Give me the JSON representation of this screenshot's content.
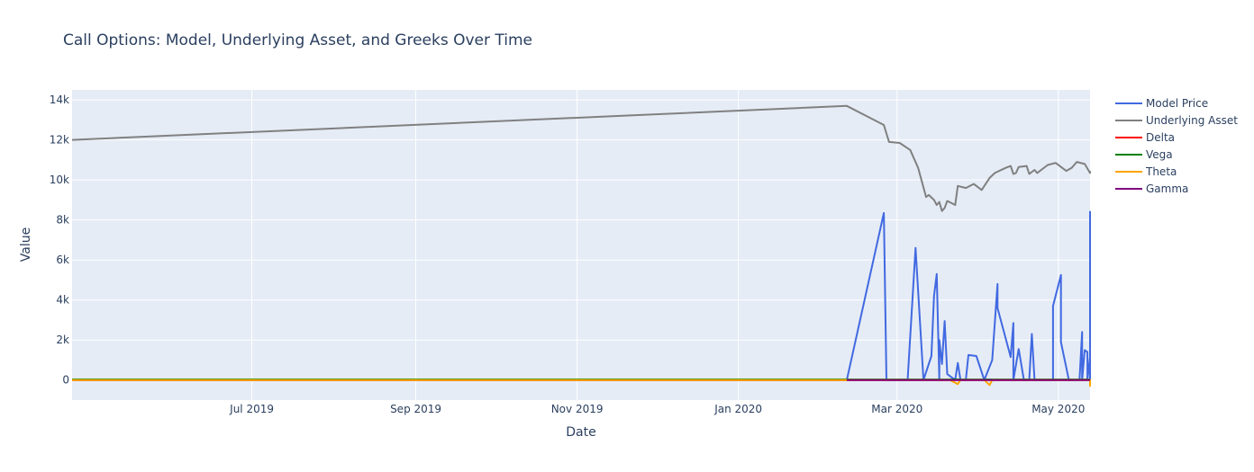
{
  "chart_data": {
    "type": "line",
    "title": "Call Options: Model, Underlying Asset, and Greeks Over Time",
    "xlabel": "Date",
    "ylabel": "Value",
    "x_range": [
      "2019-04-24",
      "2020-05-13"
    ],
    "ylim": [
      -1000,
      14500
    ],
    "grid": true,
    "legend_position": "right",
    "x_ticks": [
      {
        "date": "2019-07-01",
        "label": "Jul 2019"
      },
      {
        "date": "2019-09-01",
        "label": "Sep 2019"
      },
      {
        "date": "2019-11-01",
        "label": "Nov 2019"
      },
      {
        "date": "2020-01-01",
        "label": "Jan 2020"
      },
      {
        "date": "2020-03-01",
        "label": "Mar 2020"
      },
      {
        "date": "2020-05-01",
        "label": "May 2020"
      }
    ],
    "y_ticks": [
      {
        "value": 0,
        "label": "0"
      },
      {
        "value": 2000,
        "label": "2k"
      },
      {
        "value": 4000,
        "label": "4k"
      },
      {
        "value": 6000,
        "label": "6k"
      },
      {
        "value": 8000,
        "label": "8k"
      },
      {
        "value": 10000,
        "label": "10k"
      },
      {
        "value": 12000,
        "label": "12k"
      },
      {
        "value": 14000,
        "label": "14k"
      }
    ],
    "series": [
      {
        "name": "Underlying Asset",
        "color": "#808080",
        "points": [
          [
            "2019-04-24",
            12000
          ],
          [
            "2020-02-11",
            13700
          ],
          [
            "2020-02-25",
            12750
          ],
          [
            "2020-02-27",
            11900
          ],
          [
            "2020-03-02",
            11850
          ],
          [
            "2020-03-06",
            11500
          ],
          [
            "2020-03-09",
            10600
          ],
          [
            "2020-03-12",
            9150
          ],
          [
            "2020-03-13",
            9250
          ],
          [
            "2020-03-15",
            9000
          ],
          [
            "2020-03-16",
            8750
          ],
          [
            "2020-03-17",
            8900
          ],
          [
            "2020-03-18",
            8450
          ],
          [
            "2020-03-19",
            8600
          ],
          [
            "2020-03-20",
            8950
          ],
          [
            "2020-03-23",
            8750
          ],
          [
            "2020-03-24",
            9700
          ],
          [
            "2020-03-27",
            9600
          ],
          [
            "2020-03-30",
            9800
          ],
          [
            "2020-04-02",
            9500
          ],
          [
            "2020-04-05",
            10100
          ],
          [
            "2020-04-07",
            10350
          ],
          [
            "2020-04-11",
            10600
          ],
          [
            "2020-04-13",
            10700
          ],
          [
            "2020-04-14",
            10300
          ],
          [
            "2020-04-15",
            10350
          ],
          [
            "2020-04-16",
            10650
          ],
          [
            "2020-04-19",
            10700
          ],
          [
            "2020-04-20",
            10300
          ],
          [
            "2020-04-22",
            10500
          ],
          [
            "2020-04-23",
            10350
          ],
          [
            "2020-04-27",
            10750
          ],
          [
            "2020-04-30",
            10850
          ],
          [
            "2020-05-04",
            10450
          ],
          [
            "2020-05-06",
            10600
          ],
          [
            "2020-05-08",
            10900
          ],
          [
            "2020-05-11",
            10800
          ],
          [
            "2020-05-13",
            10350
          ],
          [
            "2020-05-14",
            10450
          ]
        ]
      },
      {
        "name": "Model Price",
        "color": "#4169e1",
        "points": [
          [
            "2019-04-24",
            0
          ],
          [
            "2020-02-11",
            0
          ],
          [
            "2020-02-25",
            8350
          ],
          [
            "2020-02-26",
            0
          ],
          [
            "2020-03-05",
            0
          ],
          [
            "2020-03-08",
            6600
          ],
          [
            "2020-03-11",
            0
          ],
          [
            "2020-03-14",
            1200
          ],
          [
            "2020-03-15",
            4200
          ],
          [
            "2020-03-16",
            5300
          ],
          [
            "2020-03-17",
            0
          ],
          [
            "2020-03-17",
            2000
          ],
          [
            "2020-03-18",
            800
          ],
          [
            "2020-03-19",
            2950
          ],
          [
            "2020-03-20",
            300
          ],
          [
            "2020-03-23",
            0
          ],
          [
            "2020-03-24",
            850
          ],
          [
            "2020-03-25",
            0
          ],
          [
            "2020-03-27",
            0
          ],
          [
            "2020-03-28",
            1250
          ],
          [
            "2020-03-31",
            1200
          ],
          [
            "2020-04-03",
            0
          ],
          [
            "2020-04-06",
            1000
          ],
          [
            "2020-04-08",
            4800
          ],
          [
            "2020-04-08",
            3600
          ],
          [
            "2020-04-13",
            1150
          ],
          [
            "2020-04-14",
            2850
          ],
          [
            "2020-04-14",
            0
          ],
          [
            "2020-04-16",
            1550
          ],
          [
            "2020-04-18",
            0
          ],
          [
            "2020-04-20",
            0
          ],
          [
            "2020-04-21",
            2300
          ],
          [
            "2020-04-22",
            0
          ],
          [
            "2020-04-29",
            0
          ],
          [
            "2020-04-29",
            3700
          ],
          [
            "2020-05-02",
            5250
          ],
          [
            "2020-05-02",
            1900
          ],
          [
            "2020-05-05",
            0
          ],
          [
            "2020-05-09",
            0
          ],
          [
            "2020-05-10",
            2400
          ],
          [
            "2020-05-10",
            0
          ],
          [
            "2020-05-11",
            1500
          ],
          [
            "2020-05-12",
            1400
          ],
          [
            "2020-05-12",
            0
          ],
          [
            "2020-05-13",
            1150
          ],
          [
            "2020-05-13",
            0
          ],
          [
            "2020-05-14",
            0
          ],
          [
            "2020-05-14",
            8450
          ]
        ]
      },
      {
        "name": "Delta",
        "color": "#ff0000",
        "points": [
          [
            "2019-04-24",
            0
          ],
          [
            "2020-05-14",
            1
          ]
        ]
      },
      {
        "name": "Vega",
        "color": "#008000",
        "points": [
          [
            "2019-04-24",
            30
          ],
          [
            "2020-05-14",
            30
          ]
        ]
      },
      {
        "name": "Theta",
        "color": "#ffa500",
        "points": [
          [
            "2019-04-24",
            0
          ],
          [
            "2020-03-21",
            0
          ],
          [
            "2020-03-24",
            -200
          ],
          [
            "2020-03-25",
            0
          ],
          [
            "2020-04-03",
            0
          ],
          [
            "2020-04-05",
            -250
          ],
          [
            "2020-04-06",
            0
          ],
          [
            "2020-05-13",
            0
          ],
          [
            "2020-05-13",
            -300
          ],
          [
            "2020-05-14",
            -250
          ]
        ]
      },
      {
        "name": "Gamma",
        "color": "#800080",
        "points": [
          [
            "2020-02-11",
            0
          ],
          [
            "2020-05-14",
            0
          ]
        ]
      }
    ],
    "legend_order": [
      "Model Price",
      "Underlying Asset",
      "Delta",
      "Vega",
      "Theta",
      "Gamma"
    ]
  }
}
